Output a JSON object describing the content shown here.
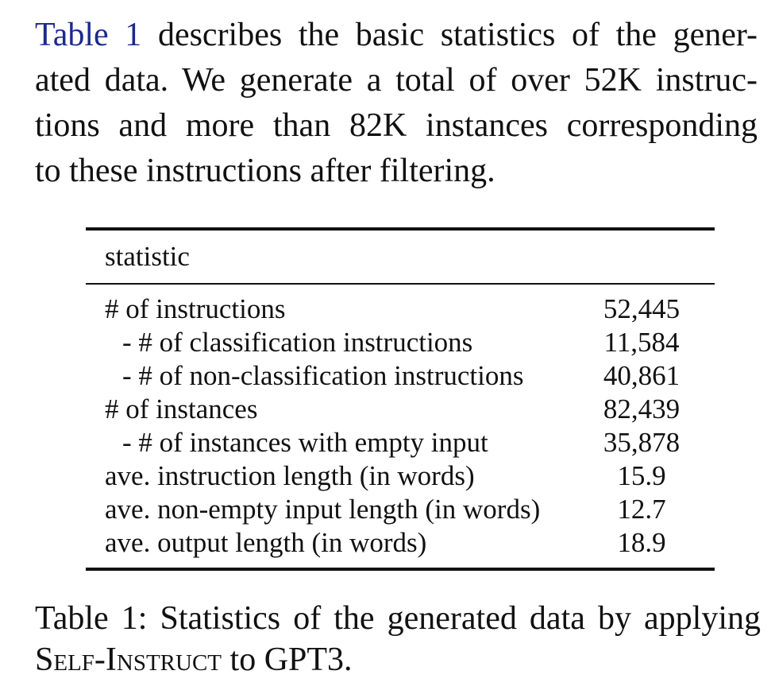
{
  "paragraph": {
    "ref": "Table 1",
    "line1_rest": " describes the basic statistics of the gener-",
    "line2": "ated data. We generate a total of over 52K instruc-",
    "line3": "tions and more than 82K instances corresponding",
    "line4": "to these instructions after filtering."
  },
  "table": {
    "header": "statistic",
    "rows": [
      {
        "label": "# of instructions",
        "value": "52,445"
      },
      {
        "label": "- # of classification instructions",
        "value": "11,584"
      },
      {
        "label": "- # of non-classification instructions",
        "value": "40,861"
      },
      {
        "label": "# of instances",
        "value": "82,439"
      },
      {
        "label": "- # of instances with empty input",
        "value": "35,878"
      },
      {
        "label": "ave. instruction length (in words)",
        "value": "15.9"
      },
      {
        "label": "ave. non-empty input length (in words)",
        "value": "12.7"
      },
      {
        "label": "ave. output length (in words)",
        "value": "18.9"
      }
    ]
  },
  "caption": {
    "line1": "Table 1: Statistics of the generated data by applying",
    "method": "Self-Instruct",
    "line2_rest": " to GPT3."
  }
}
